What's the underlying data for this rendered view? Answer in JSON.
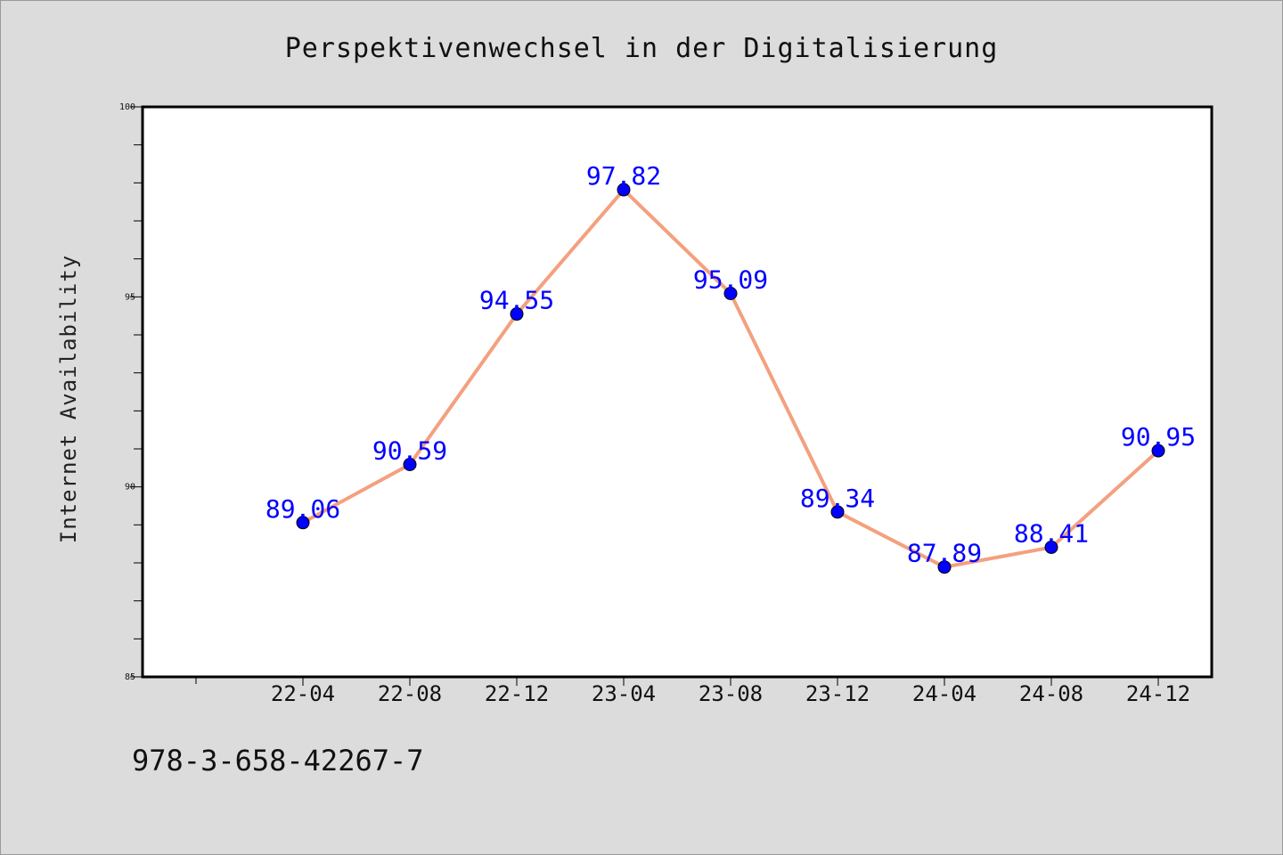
{
  "chart_data": {
    "type": "line",
    "title": "Perspektivenwechsel in der Digitalisierung",
    "xlabel": "",
    "ylabel": "Internet Availability",
    "categories": [
      "22-04",
      "22-08",
      "22-12",
      "23-04",
      "23-08",
      "23-12",
      "24-04",
      "24-08",
      "24-12"
    ],
    "series": [
      {
        "values": [
          89.06,
          90.59,
          94.55,
          97.82,
          95.09,
          89.34,
          87.89,
          88.41,
          90.95
        ],
        "labels": [
          "89.06",
          "90.59",
          "94.55",
          "97.82",
          "95.09",
          "89.34",
          "87.89",
          "88.41",
          "90.95"
        ],
        "line_color": "#f4a07f",
        "marker_color": "#0000ff",
        "label_color": "#0000ff"
      }
    ],
    "ylim": [
      85,
      100
    ],
    "yticks": [
      85,
      90,
      95,
      100
    ],
    "ytick_labels": [
      "85",
      "90",
      "95",
      "100"
    ],
    "y_minor_step": 1,
    "grid": false,
    "legend": "none"
  },
  "footnote": "978-3-658-42267-7",
  "colors": {
    "background": "#dcdcdc",
    "plot_background": "#ffffff",
    "axis": "#000000"
  }
}
